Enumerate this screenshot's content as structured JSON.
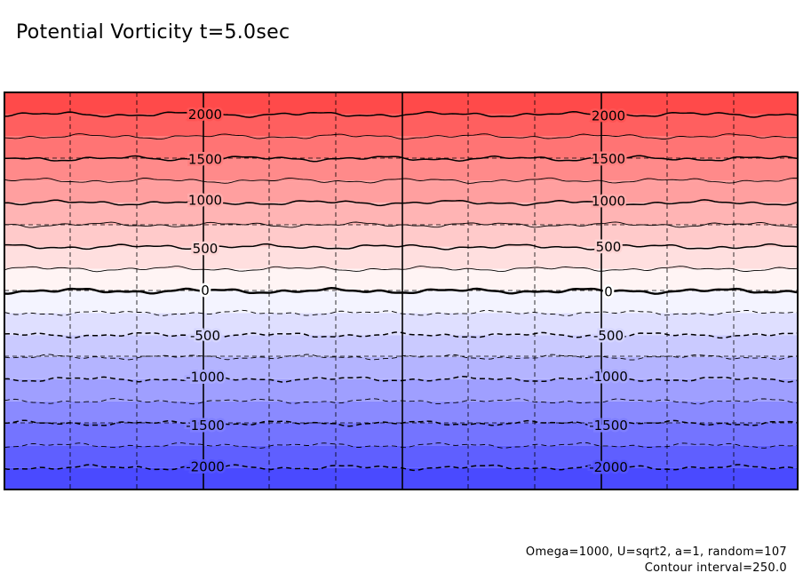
{
  "chart_data": {
    "type": "contour",
    "title": "Potential Vorticity t=5.0sec",
    "contour_interval": 250.0,
    "value_range": [
      -2250,
      2250
    ],
    "levels": [
      -2000,
      -1750,
      -1500,
      -1250,
      -1000,
      -750,
      -500,
      -250,
      0,
      250,
      500,
      750,
      1000,
      1250,
      1500,
      1750,
      2000
    ],
    "level_labels": [
      "2000",
      "1500",
      "1000",
      "500",
      "0",
      "-500",
      "-1000",
      "-1500",
      "-2000"
    ],
    "negative_contours": "dashed",
    "positive_contours": "solid",
    "colormap": {
      "negative": "#3f3fff",
      "zero": "#ffffff",
      "positive": "#ff3f3f"
    },
    "grid": true,
    "notes": [
      "Omega=1000, U=sqrt2, a=1, random=107",
      "Contour interval=250.0"
    ]
  }
}
